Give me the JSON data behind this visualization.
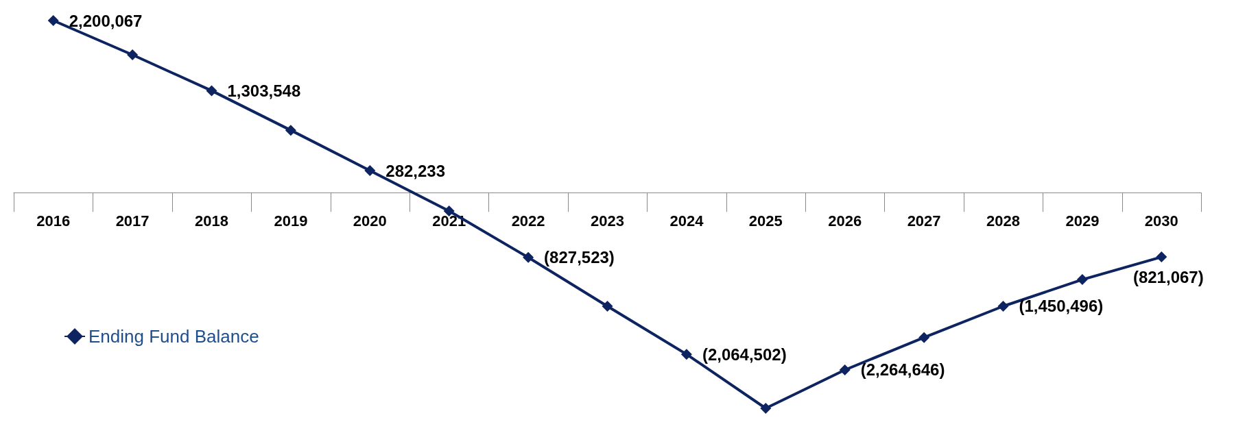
{
  "chart_data": {
    "type": "line",
    "categories": [
      "2016",
      "2017",
      "2018",
      "2019",
      "2020",
      "2021",
      "2022",
      "2023",
      "2024",
      "2025",
      "2026",
      "2027",
      "2028",
      "2029",
      "2030"
    ],
    "series": [
      {
        "name": "Ending Fund Balance",
        "color": "#0d2461",
        "values": [
          2200067,
          1762000,
          1303548,
          798000,
          282233,
          -234000,
          -827523,
          -1450000,
          -2064502,
          -2755000,
          -2264646,
          -1850000,
          -1450496,
          -1110000,
          -821067
        ],
        "value_labels": [
          "2,200,067",
          null,
          "1,303,548",
          null,
          "282,233",
          null,
          "(827,523)",
          null,
          "(2,064,502)",
          null,
          "(2,264,646)",
          null,
          "(1,450,496)",
          null,
          "(821,067)"
        ]
      }
    ],
    "marker": "diamond",
    "line_style": "solid",
    "legend": "left",
    "grid": false
  }
}
